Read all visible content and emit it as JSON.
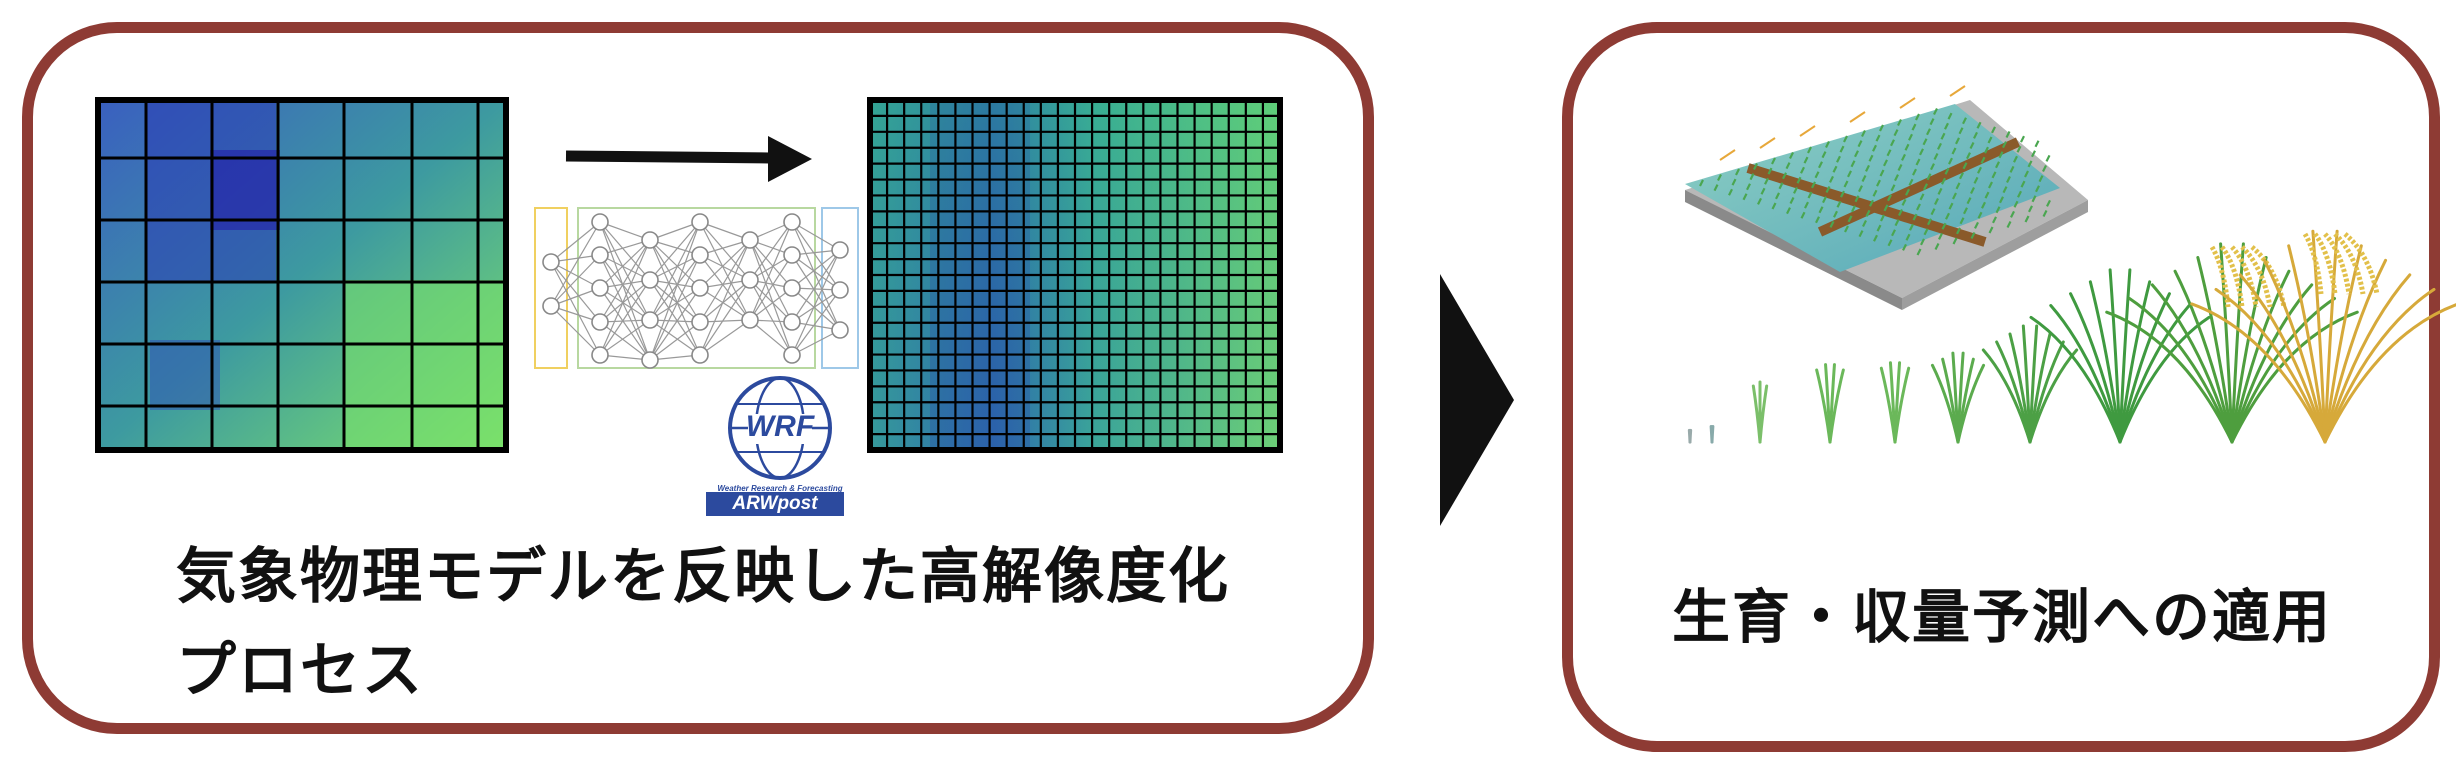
{
  "diagram": {
    "left_caption_line1": "気象物理モデルを反映した高解像度化",
    "left_caption_line2": "プロセス",
    "right_caption": "生育・収量予測への適用",
    "wrf_logo_text": "WRF",
    "wrf_logo_ring_text": "Weather Research & Forecasting",
    "arwpost_label": "ARWpost"
  },
  "colors": {
    "panel_border": "#8e3b34",
    "arrow": "#111111",
    "wrf_blue": "#2c4a9e",
    "grid_low": "#2a2fb0",
    "grid_high": "#7ee870"
  },
  "icons": [
    "arrow-right-icon",
    "chevron-right-icon",
    "neural-network-icon",
    "wrf-logo-icon",
    "rice-field-icon",
    "rice-plant-icon"
  ]
}
